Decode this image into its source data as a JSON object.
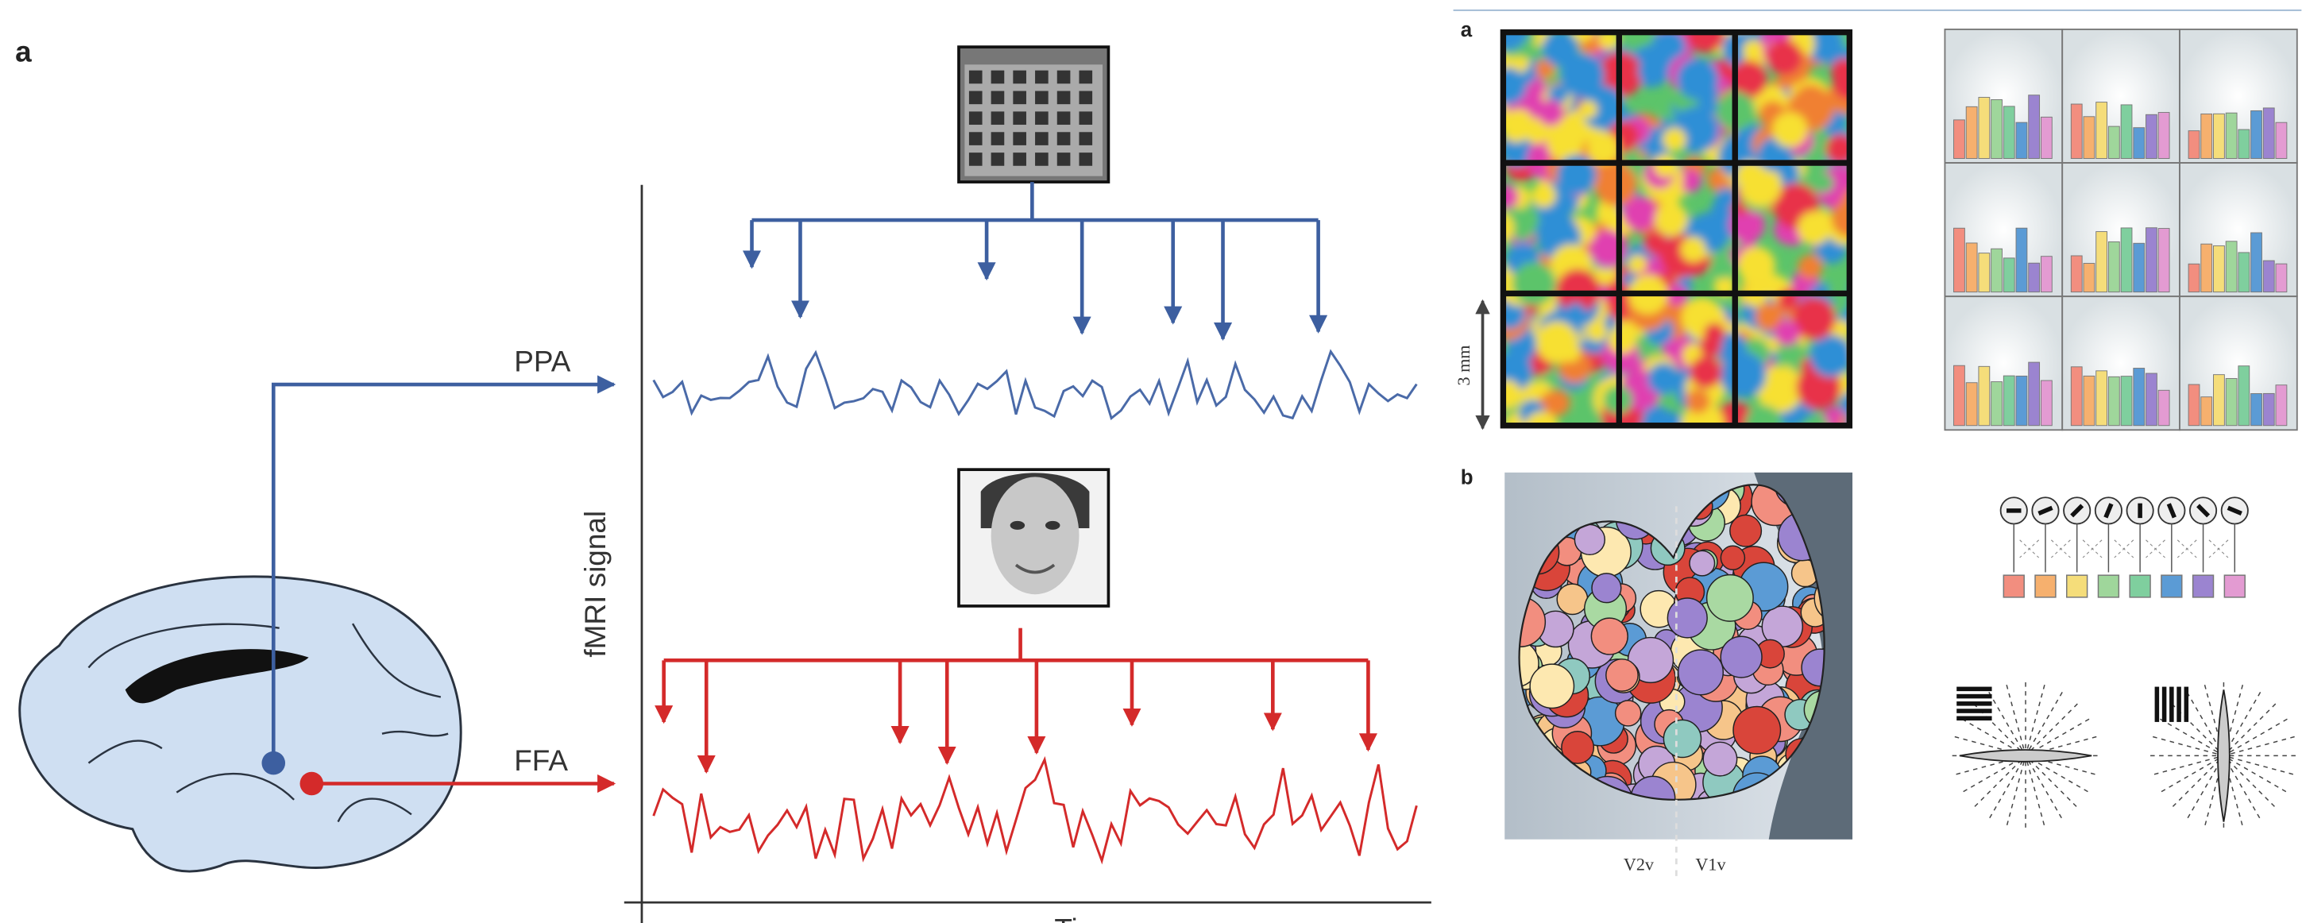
{
  "left": {
    "label": "a",
    "regions": [
      "PPA",
      "FFA"
    ],
    "y_axis": "fMRI signal",
    "x_axis": "Time"
  },
  "right": {
    "panel_a": {
      "label": "a",
      "scale": "3 mm"
    },
    "panel_b": {
      "label": "b",
      "areas": [
        "V2v",
        "V1v"
      ]
    }
  }
}
